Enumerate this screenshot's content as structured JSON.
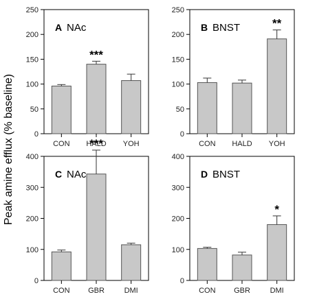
{
  "figure": {
    "ylabel": "Peak amine efflux (% baseline)"
  },
  "chart_data": [
    {
      "type": "bar",
      "panel": "A",
      "title": "NAc",
      "categories": [
        "CON",
        "HALD",
        "YOH"
      ],
      "values": [
        96,
        140,
        107
      ],
      "errors": [
        3,
        6,
        13
      ],
      "significance": [
        "",
        "***",
        ""
      ],
      "ylim": [
        0,
        250
      ],
      "yticks": [
        0,
        50,
        100,
        150,
        200,
        250
      ],
      "bar_color": "#c8c8c8"
    },
    {
      "type": "bar",
      "panel": "B",
      "title": "BNST",
      "categories": [
        "CON",
        "HALD",
        "YOH"
      ],
      "values": [
        103,
        102,
        191
      ],
      "errors": [
        9,
        6,
        18
      ],
      "significance": [
        "",
        "",
        "**"
      ],
      "ylim": [
        0,
        250
      ],
      "yticks": [
        0,
        50,
        100,
        150,
        200,
        250
      ],
      "bar_color": "#c8c8c8"
    },
    {
      "type": "bar",
      "panel": "C",
      "title": "NAc",
      "categories": [
        "CON",
        "GBR",
        "DMI"
      ],
      "values": [
        92,
        343,
        115
      ],
      "errors": [
        6,
        77,
        5
      ],
      "significance": [
        "",
        "***",
        ""
      ],
      "ylim": [
        0,
        400
      ],
      "yticks": [
        0,
        100,
        200,
        300,
        400
      ],
      "bar_color": "#c8c8c8"
    },
    {
      "type": "bar",
      "panel": "D",
      "title": "BNST",
      "categories": [
        "CON",
        "GBR",
        "DMI"
      ],
      "values": [
        103,
        82,
        180
      ],
      "errors": [
        4,
        9,
        28
      ],
      "significance": [
        "",
        "",
        "*"
      ],
      "ylim": [
        0,
        400
      ],
      "yticks": [
        0,
        100,
        200,
        300,
        400
      ],
      "bar_color": "#c8c8c8"
    }
  ]
}
